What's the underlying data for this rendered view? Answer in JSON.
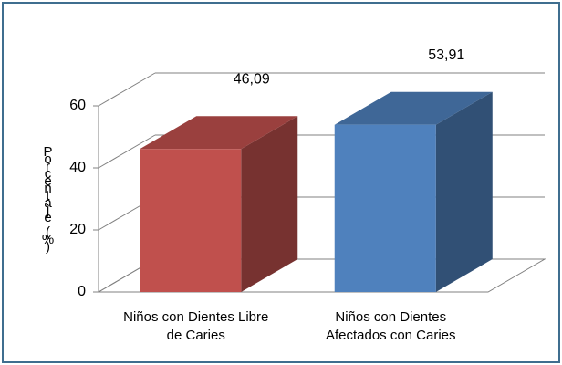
{
  "chart_data": {
    "type": "bar3d",
    "y_label": "Porcentaje (%)",
    "categories": [
      "Niños con Dientes Libre de Caries",
      "Niños con Dientes Afectados con Caries"
    ],
    "values": [
      46.09,
      53.91
    ],
    "value_labels": [
      "46,09",
      "53,91"
    ],
    "colors": [
      "#c0504d",
      "#4f81bd"
    ],
    "ylim": [
      0,
      60
    ],
    "yticks": [
      0,
      20,
      40,
      60
    ],
    "grid": true
  }
}
